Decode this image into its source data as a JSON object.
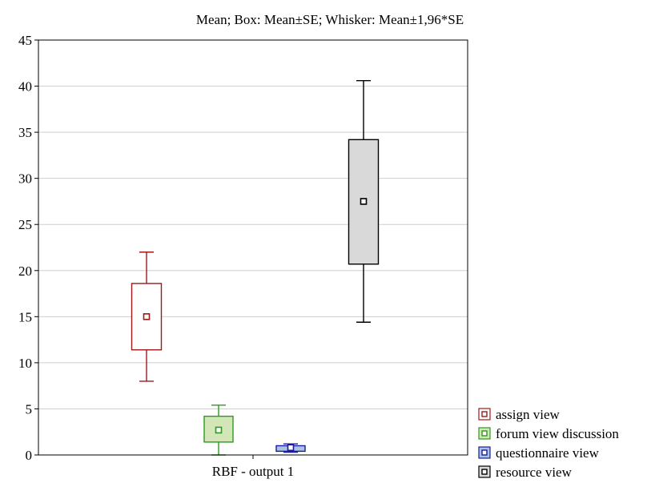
{
  "chart_data": {
    "type": "box",
    "title": "Mean; Box: Mean±SE; Whisker: Mean±1,96*SE",
    "xlabel": "",
    "ylabel": "",
    "categories": [
      "RBF - output 1"
    ],
    "ylim": [
      0,
      45
    ],
    "yticks": [
      0,
      5,
      10,
      15,
      20,
      25,
      30,
      35,
      40,
      45
    ],
    "grid": true,
    "legend_position": "bottom-right outside",
    "series": [
      {
        "name": "assign view",
        "mean": 15.0,
        "box": [
          11.4,
          18.6
        ],
        "whisker": [
          8.0,
          22.0
        ],
        "color": "#a01818",
        "fill": "#ffffff"
      },
      {
        "name": "forum view discussion",
        "mean": 2.7,
        "box": [
          1.4,
          4.2
        ],
        "whisker": [
          0.0,
          5.4
        ],
        "color": "#2e9a1e",
        "fill": "#d2e6b8"
      },
      {
        "name": "questionnaire view",
        "mean": 0.8,
        "box": [
          0.4,
          1.0
        ],
        "whisker": [
          0.3,
          1.2
        ],
        "color": "#1c1c9a",
        "fill": "#a9c3e4"
      },
      {
        "name": "resource view",
        "mean": 27.5,
        "box": [
          20.7,
          34.2
        ],
        "whisker": [
          14.4,
          40.6
        ],
        "color": "#000000",
        "fill": "#d9d9d9"
      }
    ]
  }
}
